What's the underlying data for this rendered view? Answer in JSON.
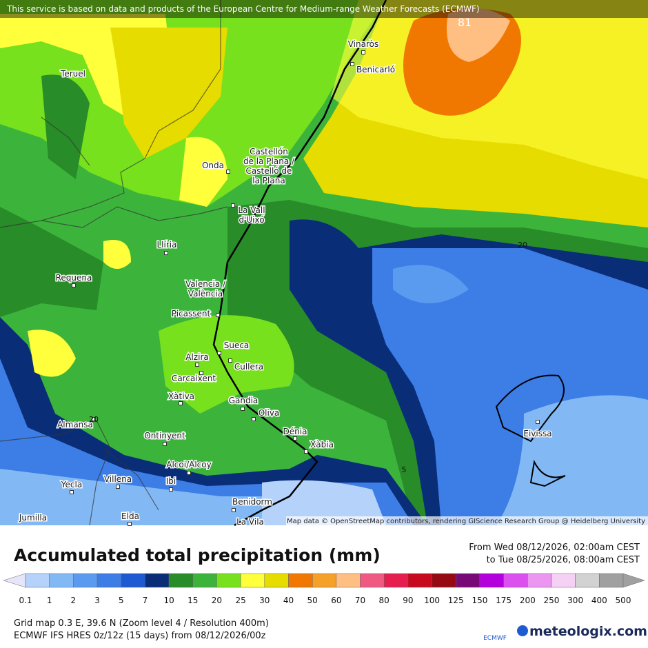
{
  "header": {
    "attribution": "This service is based on data and products of the European Centre for Medium-range Weather Forecasts (ECMWF)"
  },
  "map": {
    "credit": "Map data © OpenStreetMap contributors, rendering GIScience Research Group @ Heidelberg University",
    "places": [
      {
        "lines": [
          "Vinaròs"
        ]
      },
      {
        "lines": [
          "Benicarló"
        ]
      },
      {
        "lines": [
          "Teruel"
        ]
      },
      {
        "lines": [
          "Onda"
        ]
      },
      {
        "lines": [
          "Castellón",
          "de la Plana /",
          "Castelló de",
          "la Plana"
        ]
      },
      {
        "lines": [
          "La Vall",
          "d'Uixó"
        ]
      },
      {
        "lines": [
          "Llíria"
        ]
      },
      {
        "lines": [
          "Requena"
        ]
      },
      {
        "lines": [
          "Valencia /",
          "València"
        ]
      },
      {
        "lines": [
          "Picassent"
        ]
      },
      {
        "lines": [
          "Sueca"
        ]
      },
      {
        "lines": [
          "Alzira"
        ]
      },
      {
        "lines": [
          "Cullera"
        ]
      },
      {
        "lines": [
          "Carcaixent"
        ]
      },
      {
        "lines": [
          "Xàtiva"
        ]
      },
      {
        "lines": [
          "Gandia"
        ]
      },
      {
        "lines": [
          "Oliva"
        ]
      },
      {
        "lines": [
          "Dénia"
        ]
      },
      {
        "lines": [
          "Xàbia"
        ]
      },
      {
        "lines": [
          "Almansa"
        ]
      },
      {
        "lines": [
          "Ontinyent"
        ]
      },
      {
        "lines": [
          "Alcoi/Alcoy"
        ]
      },
      {
        "lines": [
          "Eivissa"
        ]
      },
      {
        "lines": [
          "Villena"
        ]
      },
      {
        "lines": [
          "Yecla"
        ]
      },
      {
        "lines": [
          "Ibi"
        ]
      },
      {
        "lines": [
          "Benidorm"
        ]
      },
      {
        "lines": [
          "Jumilla"
        ]
      },
      {
        "lines": [
          "Elda"
        ]
      },
      {
        "lines": [
          "La Vila"
        ]
      }
    ],
    "contour_labels": [
      "81",
      "20",
      "5",
      "20"
    ]
  },
  "legend": {
    "title": "Accumulated total precipitation (mm)",
    "period_from": "From Wed 08/12/2026, 02:00am CEST",
    "period_to": "to Tue 08/25/2026, 08:00am CEST",
    "labels": [
      "0.1",
      "1",
      "2",
      "3",
      "5",
      "7",
      "10",
      "15",
      "20",
      "25",
      "30",
      "40",
      "50",
      "60",
      "70",
      "80",
      "90",
      "100",
      "125",
      "150",
      "175",
      "200",
      "250",
      "300",
      "400",
      "500"
    ],
    "colors": [
      "#e6e6fa",
      "#b4d2fa",
      "#82b9f5",
      "#5a9bf0",
      "#3c7de6",
      "#1e5ad2",
      "#0a2d78",
      "#288c28",
      "#3cb43c",
      "#78e11e",
      "#ffff3c",
      "#e6dc00",
      "#f07800",
      "#f5a028",
      "#ffbe82",
      "#f05a82",
      "#e61e50",
      "#c80a1e",
      "#960a14",
      "#780a78",
      "#b400dc",
      "#dc50f0",
      "#eb96f0",
      "#f5d2f5",
      "#d2d2d2",
      "#a0a0a0"
    ]
  },
  "footer": {
    "grid": "Grid map 0.3 E, 39.6 N (Zoom level 4 / Resolution 400m)",
    "model": "ECMWF IFS HRES 0z/12z (15 days) from 08/12/2026/00z",
    "ecmwf": "ECMWF",
    "brand": "meteologix.com"
  }
}
